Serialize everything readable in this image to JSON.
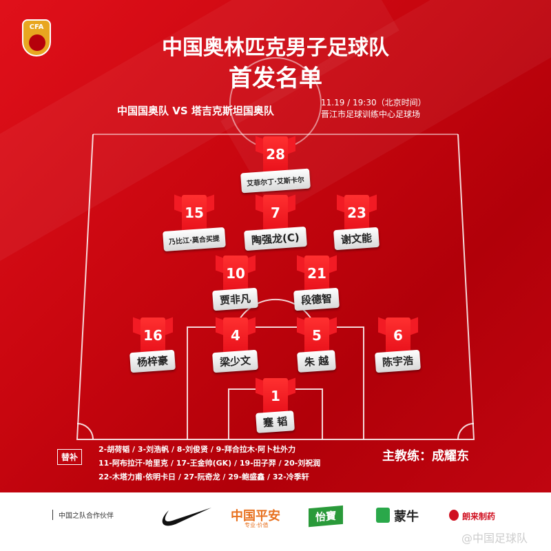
{
  "header": {
    "logo_text": "CFA",
    "title": "中国奥林匹克男子足球队",
    "subtitle": "首发名单",
    "match": "中国国奥队  VS  塔吉克斯坦国奥队",
    "datetime": "11.19 / 19:30（北京时间）",
    "venue": "晋江市足球训练中心足球场"
  },
  "lineup": [
    {
      "number": "28",
      "name": "艾菲尔丁·艾斯卡尔",
      "small": true
    },
    {
      "number": "15",
      "name": "乃比江·莫合买提",
      "small": true
    },
    {
      "number": "7",
      "name": "陶强龙(C)"
    },
    {
      "number": "23",
      "name": "谢文能"
    },
    {
      "number": "10",
      "name": "贾非凡"
    },
    {
      "number": "21",
      "name": "段德智"
    },
    {
      "number": "16",
      "name": "杨梓豪"
    },
    {
      "number": "4",
      "name": "梁少文"
    },
    {
      "number": "5",
      "name": "朱 越"
    },
    {
      "number": "6",
      "name": "陈宇浩"
    },
    {
      "number": "1",
      "name": "蹇 韬"
    }
  ],
  "substitutes": {
    "label": "替补",
    "lines": [
      "2-胡荷韬 / 3-刘浩帆  / 8-刘俊贤 / 9-拜合拉木·阿卜杜外力",
      "11-阿布拉汗·哈里克 / 17-王金帅(GK) / 19-田子羿 / 20-刘祝润",
      "22-木塔力甫·依明卡日 / 27-阮奇龙 / 29-鲍盛鑫 / 32-冷季轩"
    ]
  },
  "coach": "主教练：成耀东",
  "footer": {
    "partners_label": "中国之队合作伙伴",
    "sponsors": [
      "Nike",
      "中国平安",
      "专业·价值",
      "怡寶",
      "蒙牛",
      "朗来制药"
    ],
    "watermark": "@中国足球队"
  },
  "colors": {
    "primary": "#c8060f",
    "jersey": "#f21b24"
  }
}
